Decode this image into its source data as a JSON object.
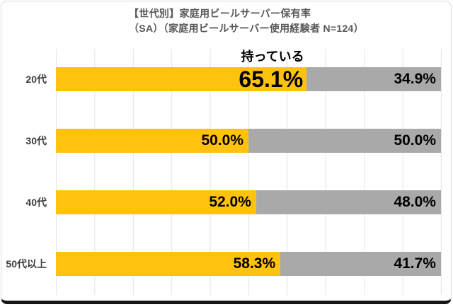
{
  "card": {
    "title_line1": "【世代別】家庭用ビールサーバー保有率",
    "title_line2": "（SA）（家庭用ビールサーバー使用経験者 N=124）"
  },
  "chart_data": {
    "type": "bar",
    "orientation": "horizontal",
    "stacked": true,
    "title": "【世代別】家庭用ビールサーバー保有率",
    "subtitle": "（SA）（家庭用ビールサーバー使用経験者 N=124）",
    "categories": [
      "20代",
      "30代",
      "40代",
      "50代以上"
    ],
    "series": [
      {
        "name": "持っている",
        "color": "#FFC20E",
        "values": [
          65.1,
          50.0,
          52.0,
          58.3
        ]
      },
      {
        "name": "",
        "color": "#A9A9A9",
        "values": [
          34.9,
          50.0,
          48.0,
          41.7
        ]
      }
    ],
    "value_label_format": "percent_one_decimal",
    "annotation": {
      "text": "持っている",
      "row": 0,
      "segment": 0
    },
    "emphasized": {
      "row": 0,
      "segment": 0
    },
    "xlim": [
      0,
      100
    ],
    "gridline_interval_percent": 10,
    "x_tick_labels_visible": false,
    "legend_visible": false,
    "colors": {
      "grid": "#e4e4e4",
      "title_text": "#595959",
      "category_text": "#3d3d3d",
      "value_text": "#000000",
      "card_border": "#dcdcdc",
      "card_bottom_bar": "#161616"
    }
  }
}
